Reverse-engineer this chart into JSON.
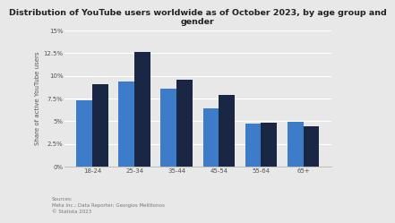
{
  "title": "Distribution of YouTube users worldwide as of October 2023, by age group and\ngender",
  "ylabel": "Share of active YouTube users",
  "age_groups": [
    "18-24",
    "25-34",
    "35-44",
    "45-54",
    "55-64",
    "65+"
  ],
  "male_values": [
    7.3,
    9.4,
    8.6,
    6.4,
    4.7,
    4.9
  ],
  "female_values": [
    9.1,
    12.6,
    9.6,
    7.9,
    4.8,
    4.4
  ],
  "male_color": "#3d7cc9",
  "female_color": "#1a2744",
  "bg_color": "#e8e8e8",
  "plot_bg_color": "#e8e8e8",
  "ylim": [
    0,
    15
  ],
  "yticks": [
    0,
    2.5,
    5.0,
    7.5,
    10.0,
    12.5,
    15.0
  ],
  "ytick_labels": [
    "0%",
    "2.5%",
    "5%",
    "7.5%",
    "10%",
    "12.5%",
    "15%"
  ],
  "source_text": "Sources:\nMeta Inc.; Data Reporter; Georgios Melittonos\n© Statista 2023",
  "title_fontsize": 6.8,
  "axis_fontsize": 5.0,
  "tick_fontsize": 5.0,
  "bar_width": 0.38
}
